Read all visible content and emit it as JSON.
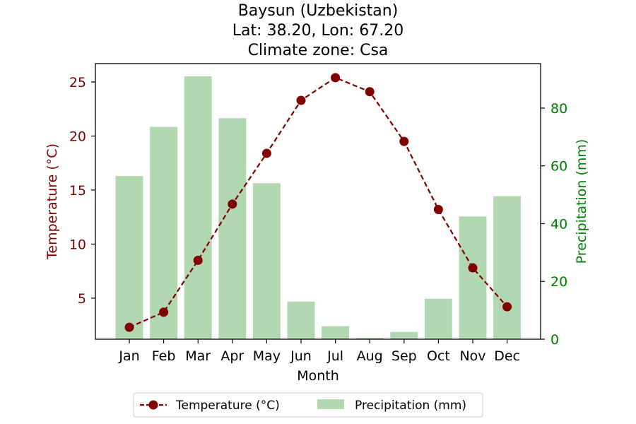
{
  "colors": {
    "temperature": "#800000",
    "precipitation": "#008000",
    "bar_fill": "#b2d8b2",
    "axis": "#000000"
  },
  "chart_data": {
    "type": "bar",
    "title_lines": [
      "Baysun (Uzbekistan)",
      "Lat: 38.20, Lon: 67.20",
      "Climate zone: Csa"
    ],
    "xlabel": "Month",
    "ylabel_left": "Temperature (°C)",
    "ylabel_right": "Precipitation (mm)",
    "categories": [
      "Jan",
      "Feb",
      "Mar",
      "Apr",
      "May",
      "Jun",
      "Jul",
      "Aug",
      "Sep",
      "Oct",
      "Nov",
      "Dec"
    ],
    "series": [
      {
        "name": "Temperature (°C)",
        "type": "line",
        "axis": "left",
        "values": [
          2.3,
          3.7,
          8.5,
          13.7,
          18.4,
          23.3,
          25.4,
          24.1,
          19.5,
          13.2,
          7.8,
          4.2
        ]
      },
      {
        "name": "Precipitation (mm)",
        "type": "bar",
        "axis": "right",
        "values": [
          56.5,
          73.5,
          91.0,
          76.5,
          54.0,
          13.0,
          4.5,
          0.5,
          2.5,
          14.0,
          42.5,
          49.5
        ]
      }
    ],
    "ylim_left": [
      1.2,
      26.7
    ],
    "yticks_left": [
      5,
      10,
      15,
      20,
      25
    ],
    "ylim_right": [
      0,
      95.4
    ],
    "yticks_right": [
      0,
      20,
      40,
      60,
      80
    ],
    "grid": false,
    "legend_position": "bottom-center"
  }
}
